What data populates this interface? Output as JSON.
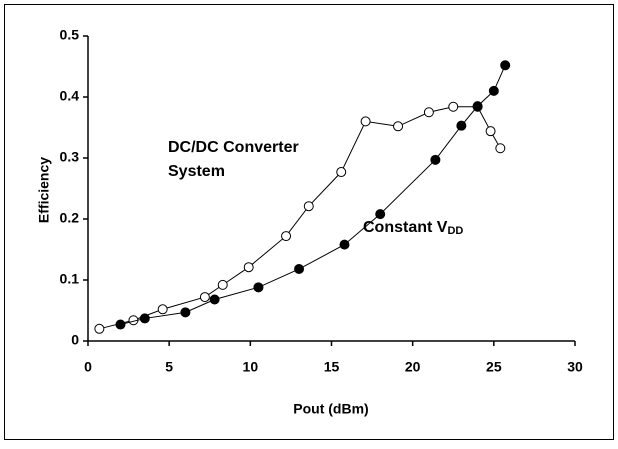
{
  "chart_data": {
    "type": "line",
    "xlabel": "Pout (dBm)",
    "ylabel": "Efficiency",
    "xlim": [
      0,
      30
    ],
    "xticks": [
      0,
      5,
      10,
      15,
      20,
      25,
      30
    ],
    "ylim": [
      0,
      0.5
    ],
    "yticks": [
      0,
      0.1,
      0.2,
      0.3,
      0.4,
      0.5
    ],
    "grid": false,
    "annotations": [
      {
        "lines": [
          "DC/DC Converter",
          "System"
        ]
      },
      {
        "text": "Constant V",
        "sub": "DD"
      }
    ],
    "series": [
      {
        "color": "#000000",
        "marker": "open",
        "x": [
          0.7,
          2.8,
          4.6,
          7.2,
          8.3,
          9.9,
          12.2,
          13.6,
          15.6,
          17.1,
          19.1,
          21,
          22.5,
          24,
          24.8,
          25.4
        ],
        "values": [
          0.02,
          0.034,
          0.052,
          0.072,
          0.092,
          0.121,
          0.172,
          0.221,
          0.277,
          0.36,
          0.352,
          0.375,
          0.384,
          0.384,
          0.344,
          0.316
        ]
      },
      {
        "color": "#000000",
        "marker": "filled",
        "x": [
          2,
          3.5,
          6,
          7.8,
          10.5,
          13,
          15.8,
          18,
          21.4,
          23,
          24,
          25,
          25.7
        ],
        "values": [
          0.027,
          0.037,
          0.047,
          0.068,
          0.088,
          0.118,
          0.158,
          0.208,
          0.297,
          0.353,
          0.385,
          0.41,
          0.452
        ]
      }
    ]
  }
}
